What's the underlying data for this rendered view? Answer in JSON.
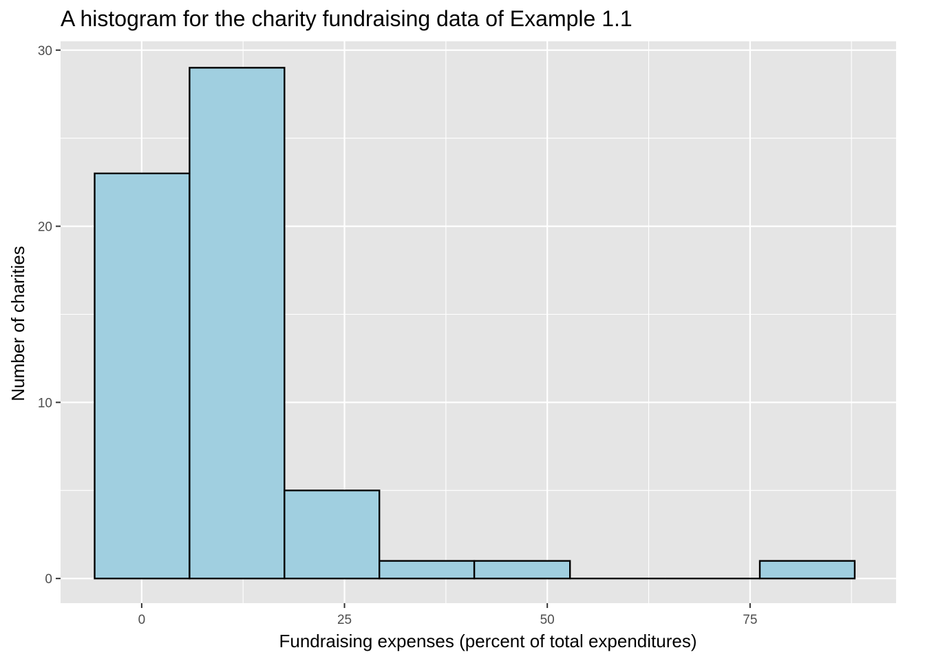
{
  "chart_data": {
    "type": "bar",
    "subtype": "histogram",
    "title": "A histogram for the charity fundraising data of Example 1.1",
    "xlabel": "Fundraising expenses (percent of total expenditures)",
    "ylabel": "Number of charities",
    "xlim": [
      -10,
      93
    ],
    "ylim": [
      -1.4,
      30.5
    ],
    "x_ticks": [
      0,
      25,
      50,
      75
    ],
    "y_ticks": [
      0,
      10,
      20,
      30
    ],
    "x_minor_ticks": [
      12.5,
      37.5,
      62.5,
      87.5
    ],
    "y_minor_ticks": [
      5,
      15,
      25
    ],
    "grid": true,
    "legend": "none",
    "bins": [
      {
        "x0": -5.8,
        "x1": 5.9,
        "count": 23
      },
      {
        "x0": 5.9,
        "x1": 17.6,
        "count": 29
      },
      {
        "x0": 17.6,
        "x1": 29.3,
        "count": 5
      },
      {
        "x0": 29.3,
        "x1": 41.0,
        "count": 1
      },
      {
        "x0": 41.0,
        "x1": 52.8,
        "count": 1
      },
      {
        "x0": 52.8,
        "x1": 64.5,
        "count": 0
      },
      {
        "x0": 64.5,
        "x1": 76.2,
        "count": 0
      },
      {
        "x0": 76.2,
        "x1": 87.9,
        "count": 1
      }
    ],
    "colors": {
      "bar_fill": "#a0cfe0",
      "bar_stroke": "#000000",
      "panel_bg": "#e5e5e5",
      "grid": "#ffffff",
      "tick_text": "#4d4d4d"
    }
  }
}
